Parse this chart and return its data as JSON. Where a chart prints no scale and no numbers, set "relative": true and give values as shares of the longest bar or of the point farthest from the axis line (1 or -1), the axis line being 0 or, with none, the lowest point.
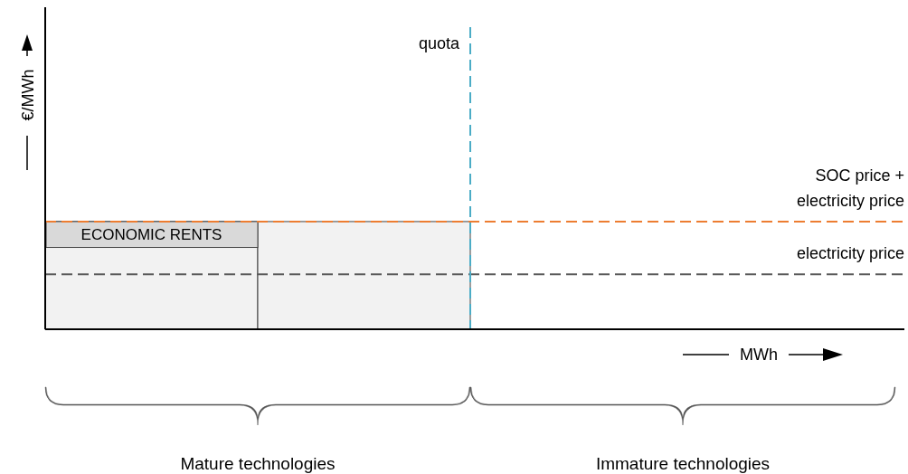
{
  "chart_data": {
    "type": "bar",
    "relative": true,
    "xlabel": "MWh",
    "annotations": [
      "€/MWh"
    ],
    "categories": [
      "Mature technologies",
      "Immature technologies"
    ],
    "series": [
      {
        "color": "#f2f2f2",
        "values": [
          1,
          null
        ]
      },
      {
        "color": "#f2f2f2",
        "values": [
          1,
          null
        ]
      }
    ],
    "ref_lines": [
      {
        "axis": "y",
        "value": 1,
        "label": "SOC price +\nelectricity price",
        "color": "#ed7d31",
        "line_style": "dashed"
      },
      {
        "axis": "y",
        "value": 0.51,
        "label": "electricity price",
        "color": "#595959",
        "line_style": "dashed"
      },
      {
        "axis": "x",
        "value": "Mature technologies",
        "label": "quota",
        "color": "#4bacc6",
        "line_style": "dashed"
      }
    ],
    "bands": [
      {
        "axis": "y",
        "from": 0.76,
        "to": 1,
        "label": "ECONOMIC RENTS",
        "color": "#d9d9d9"
      }
    ]
  }
}
